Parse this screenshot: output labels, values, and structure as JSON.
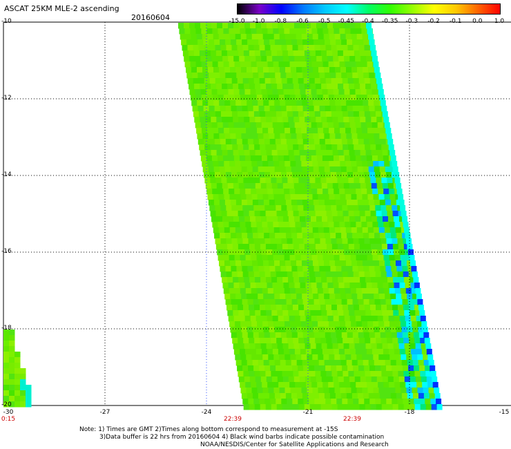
{
  "header": {
    "title": "ASCAT 25KM MLE-2 ascending",
    "date": "20160604"
  },
  "colorbar": {
    "labels": [
      "-15.0",
      "-1.0",
      "-0.8",
      "-0.6",
      "-0.5",
      "-0.45",
      "-0.4",
      "-0.35",
      "-0.3",
      "-0.2",
      "-0.1",
      "0.0",
      "1.0"
    ],
    "colors": [
      "#000000",
      "#7a00c8",
      "#0000ff",
      "#0078ff",
      "#00c8ff",
      "#00ffff",
      "#00ff64",
      "#32ff00",
      "#96ff00",
      "#ffff00",
      "#ffc800",
      "#ff6400",
      "#ff0000"
    ]
  },
  "axes": {
    "lat_labels": [
      "-10",
      "-12",
      "-14",
      "-16",
      "-18",
      "-20"
    ],
    "lon_labels": [
      "-30",
      "-27",
      "-24",
      "-21",
      "-18",
      "-15"
    ],
    "lat_range": [
      -20,
      -10
    ],
    "lon_range": [
      -30,
      -15
    ]
  },
  "times": [
    "0:15",
    "22:39",
    "22:39"
  ],
  "notes": [
    "Note: 1) Times are GMT 2)Times along bottom correspond to measurement at -15S",
    "3)Data buffer is 22 hrs from 20160604 4) Black wind barbs indicate possible contamination",
    "NOAA/NESDIS/Center for Satellite Applications and Research"
  ]
}
